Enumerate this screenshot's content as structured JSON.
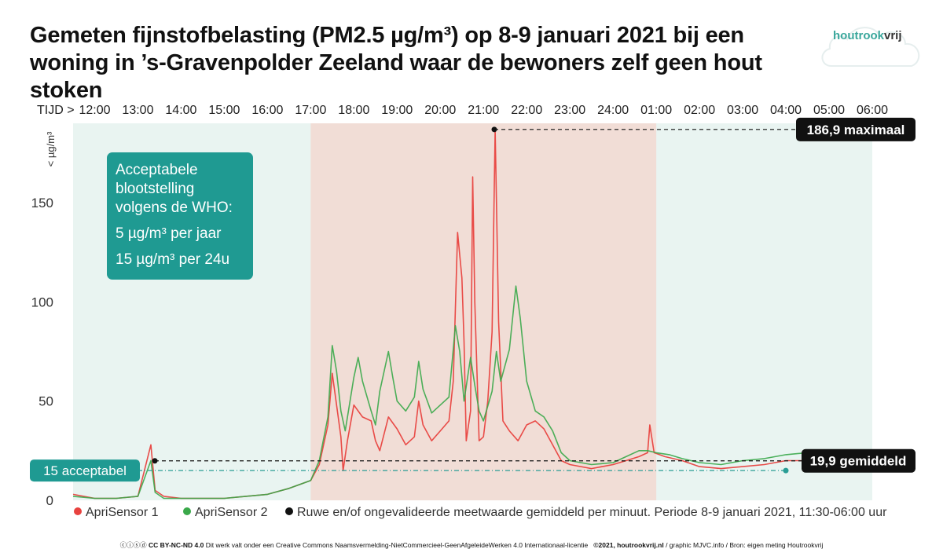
{
  "title": "Gemeten fijnstofbelasting (PM2.5 µg/m³) op 8-9 januari 2021 bij een woning in ’s-Gravenpolder Zeeland waar de bewoners zelf geen hout stoken",
  "logo": {
    "part1": "houtrook",
    "part2": "vrij"
  },
  "footer": {
    "license": "CC BY-NC-ND 4.0",
    "license_text": "Dit werk valt onder een Creative Commons Naamsvermelding-NietCommercieel-GeenAfgeleideWerken 4.0 Internationaal-licentie",
    "credit": "©2021, houtrookvrij.nl",
    "credit_rest": "/ graphic MJVC.info / Bron: eigen meting Houtrookvrij"
  },
  "chart_data": {
    "type": "line",
    "title": "Gemeten fijnstofbelasting (PM2.5 µg/m³) op 8-9 januari 2021 bij een woning in ’s-Gravenpolder Zeeland waar de bewoners zelf geen hout stoken",
    "x_prefix": "TIJD >",
    "x_ticks": [
      "12:00",
      "13:00",
      "14:00",
      "15:00",
      "16:00",
      "17:00",
      "18:00",
      "19:00",
      "20:00",
      "21:00",
      "22:00",
      "23:00",
      "24:00",
      "01:00",
      "02:00",
      "03:00",
      "04:00",
      "05:00",
      "06:00"
    ],
    "ylabel": "< µg/m³",
    "y_ticks": [
      0,
      50,
      100,
      150
    ],
    "ylim": [
      0,
      190
    ],
    "x_start_hour": 11.5,
    "x_end_hour": 30,
    "shaded_period": {
      "from_hour": 17.0,
      "to_hour": 25.0,
      "color": "#f1ddd6"
    },
    "clear_color": "#e9f4f1",
    "annotations": {
      "who_box": [
        "Acceptabele",
        "blootstelling",
        "volgens de WHO:",
        "5 µg/m³ per jaar",
        "15 µg/m³ per 24u"
      ],
      "max_label": "186,9 maximaal",
      "max_value": 186.9,
      "max_hour": 21.25,
      "mean_label": "19,9 gemiddeld",
      "mean_value": 19.9,
      "accept_label": "15 acceptabel",
      "accept_value": 15
    },
    "legend": [
      {
        "label": "ApriSensor 1",
        "color": "#e8423f"
      },
      {
        "label": "ApriSensor 2",
        "color": "#3aa84a"
      },
      {
        "label": "Ruwe en/of ongevalideerde meetwaarde gemiddeld per minuut. Periode 8-9 januari 2021, 11:30-06:00 uur",
        "color": "#111111"
      }
    ],
    "series": [
      {
        "name": "ApriSensor 1",
        "color": "#e8423f",
        "points": [
          [
            11.5,
            3
          ],
          [
            12.0,
            1
          ],
          [
            12.5,
            1
          ],
          [
            13.0,
            2
          ],
          [
            13.3,
            28
          ],
          [
            13.4,
            5
          ],
          [
            13.6,
            2
          ],
          [
            14.0,
            1
          ],
          [
            15.0,
            1
          ],
          [
            15.5,
            2
          ],
          [
            16.0,
            3
          ],
          [
            16.5,
            6
          ],
          [
            17.0,
            10
          ],
          [
            17.2,
            18
          ],
          [
            17.4,
            38
          ],
          [
            17.5,
            64
          ],
          [
            17.6,
            48
          ],
          [
            17.7,
            32
          ],
          [
            17.75,
            15
          ],
          [
            17.85,
            30
          ],
          [
            18.0,
            48
          ],
          [
            18.2,
            42
          ],
          [
            18.4,
            40
          ],
          [
            18.5,
            30
          ],
          [
            18.6,
            25
          ],
          [
            18.8,
            42
          ],
          [
            19.0,
            36
          ],
          [
            19.2,
            28
          ],
          [
            19.4,
            32
          ],
          [
            19.5,
            50
          ],
          [
            19.6,
            38
          ],
          [
            19.8,
            30
          ],
          [
            20.0,
            35
          ],
          [
            20.2,
            40
          ],
          [
            20.3,
            60
          ],
          [
            20.4,
            135
          ],
          [
            20.5,
            112
          ],
          [
            20.55,
            80
          ],
          [
            20.6,
            30
          ],
          [
            20.7,
            45
          ],
          [
            20.75,
            163
          ],
          [
            20.8,
            100
          ],
          [
            20.9,
            30
          ],
          [
            21.0,
            32
          ],
          [
            21.1,
            50
          ],
          [
            21.2,
            85
          ],
          [
            21.27,
            186.9
          ],
          [
            21.35,
            90
          ],
          [
            21.45,
            40
          ],
          [
            21.6,
            35
          ],
          [
            21.8,
            30
          ],
          [
            22.0,
            38
          ],
          [
            22.2,
            40
          ],
          [
            22.4,
            36
          ],
          [
            22.6,
            28
          ],
          [
            22.8,
            20
          ],
          [
            23.0,
            18
          ],
          [
            23.5,
            16
          ],
          [
            24.0,
            18
          ],
          [
            24.3,
            20
          ],
          [
            24.6,
            22
          ],
          [
            24.8,
            24
          ],
          [
            24.85,
            38
          ],
          [
            24.95,
            24
          ],
          [
            25.2,
            22
          ],
          [
            25.6,
            20
          ],
          [
            26.0,
            17
          ],
          [
            26.5,
            16
          ],
          [
            27.0,
            17
          ],
          [
            27.5,
            18
          ],
          [
            28.0,
            20
          ],
          [
            28.5,
            20
          ],
          [
            29.0,
            19
          ],
          [
            29.5,
            20
          ],
          [
            29.8,
            22
          ]
        ]
      },
      {
        "name": "ApriSensor 2",
        "color": "#3aa84a",
        "points": [
          [
            11.5,
            2
          ],
          [
            12.0,
            1
          ],
          [
            12.5,
            1
          ],
          [
            13.0,
            2
          ],
          [
            13.3,
            20
          ],
          [
            13.4,
            4
          ],
          [
            13.6,
            1
          ],
          [
            14.0,
            1
          ],
          [
            15.0,
            1
          ],
          [
            15.5,
            2
          ],
          [
            16.0,
            3
          ],
          [
            16.5,
            6
          ],
          [
            17.0,
            10
          ],
          [
            17.2,
            20
          ],
          [
            17.4,
            42
          ],
          [
            17.5,
            78
          ],
          [
            17.6,
            65
          ],
          [
            17.7,
            45
          ],
          [
            17.8,
            35
          ],
          [
            18.0,
            62
          ],
          [
            18.1,
            72
          ],
          [
            18.2,
            60
          ],
          [
            18.4,
            45
          ],
          [
            18.5,
            38
          ],
          [
            18.6,
            55
          ],
          [
            18.8,
            75
          ],
          [
            18.9,
            62
          ],
          [
            19.0,
            50
          ],
          [
            19.2,
            45
          ],
          [
            19.4,
            52
          ],
          [
            19.5,
            70
          ],
          [
            19.6,
            56
          ],
          [
            19.8,
            44
          ],
          [
            20.0,
            48
          ],
          [
            20.2,
            52
          ],
          [
            20.35,
            88
          ],
          [
            20.45,
            75
          ],
          [
            20.55,
            50
          ],
          [
            20.7,
            72
          ],
          [
            20.8,
            58
          ],
          [
            20.9,
            45
          ],
          [
            21.0,
            40
          ],
          [
            21.2,
            55
          ],
          [
            21.3,
            75
          ],
          [
            21.4,
            60
          ],
          [
            21.6,
            76
          ],
          [
            21.75,
            108
          ],
          [
            21.85,
            92
          ],
          [
            22.0,
            60
          ],
          [
            22.2,
            45
          ],
          [
            22.4,
            42
          ],
          [
            22.6,
            35
          ],
          [
            22.8,
            24
          ],
          [
            23.0,
            20
          ],
          [
            23.5,
            18
          ],
          [
            24.0,
            19
          ],
          [
            24.3,
            22
          ],
          [
            24.6,
            25
          ],
          [
            24.8,
            25
          ],
          [
            25.0,
            24
          ],
          [
            25.3,
            23
          ],
          [
            25.6,
            21
          ],
          [
            26.0,
            19
          ],
          [
            26.5,
            18
          ],
          [
            27.0,
            20
          ],
          [
            27.5,
            21
          ],
          [
            28.0,
            23
          ],
          [
            28.5,
            24
          ],
          [
            29.0,
            22
          ],
          [
            29.5,
            22
          ],
          [
            29.8,
            24
          ]
        ]
      }
    ]
  }
}
